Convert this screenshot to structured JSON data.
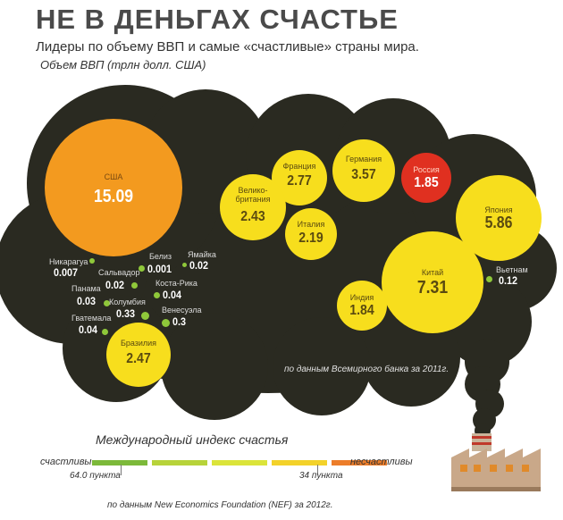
{
  "title": "НЕ В ДЕНЬГАХ СЧАСТЬЕ",
  "subtitle": "Лидеры по объему ВВП и самые «счастливые» страны мира.",
  "units": "Объем ВВП (трлн долл. США)",
  "colors": {
    "cloud": "#2a2a21",
    "big_bubble": "#f39a1f",
    "bubble": "#f7de1d",
    "russia": "#e03020",
    "dot": "#8fc83a"
  },
  "bubbles": [
    {
      "name": "США",
      "value": "15.09"
    },
    {
      "name": "Франция",
      "value": "2.77"
    },
    {
      "name": "Германия",
      "value": "3.57"
    },
    {
      "name": "Россия",
      "value": "1.85"
    },
    {
      "name": "Велико-британия",
      "value": "2.43"
    },
    {
      "name": "Италия",
      "value": "2.19"
    },
    {
      "name": "Япония",
      "value": "5.86"
    },
    {
      "name": "Китай",
      "value": "7.31"
    },
    {
      "name": "Индия",
      "value": "1.84"
    },
    {
      "name": "Бразилия",
      "value": "2.47"
    }
  ],
  "small_countries": [
    {
      "name": "Никарагуа",
      "value": "0.007"
    },
    {
      "name": "Белиз",
      "value": "0.001"
    },
    {
      "name": "Ямайка",
      "value": "0.02"
    },
    {
      "name": "Сальвадор",
      "value": "0.02"
    },
    {
      "name": "Панама",
      "value": "0.03"
    },
    {
      "name": "Коста-Рика",
      "value": "0.04"
    },
    {
      "name": "Колумбия",
      "value": "0.33"
    },
    {
      "name": "Гватемала",
      "value": "0.04"
    },
    {
      "name": "Венесуэла",
      "value": "0.3"
    },
    {
      "name": "Вьетнам",
      "value": "0.12"
    }
  ],
  "source_gdp": "по данным Всемирного банка за 2011г.",
  "happiness": {
    "title": "Международный индекс счастья",
    "happy_label": "счастливы",
    "unhappy_label": "несчастливы",
    "marker_happy": "64.0 пункта",
    "marker_unhappy": "34 пункта",
    "scale_colors": [
      "#7cb93a",
      "#b7d33a",
      "#dbe43a",
      "#f3d22a",
      "#ec7d2a",
      "#e23a2a"
    ]
  },
  "source_index": "по данным New Economics Foundation (NEF) за 2012г."
}
